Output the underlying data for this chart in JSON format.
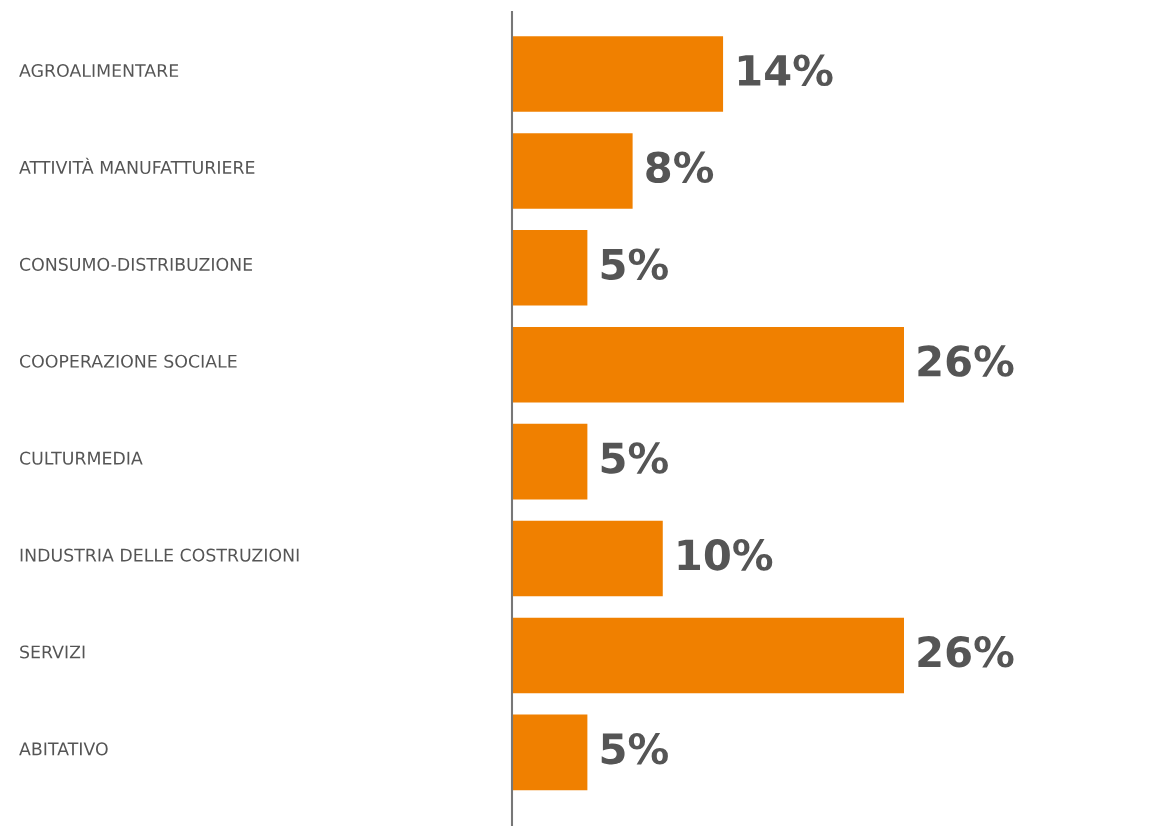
{
  "chart_data": {
    "type": "bar",
    "orientation": "horizontal",
    "categories": [
      "AGROALIMENTARE",
      "ATTIVITÀ MANUFATTURIERE",
      "CONSUMO-DISTRIBUZIONE",
      "COOPERAZIONE SOCIALE",
      "CULTURMEDIA",
      "INDUSTRIA DELLE COSTRUZIONI",
      "SERVIZI",
      "ABITATIVO"
    ],
    "values": [
      14,
      8,
      5,
      26,
      5,
      10,
      26,
      5
    ],
    "value_labels": [
      "14%",
      "8%",
      "5%",
      "26%",
      "5%",
      "10%",
      "26%",
      "5%"
    ],
    "color": "#f08000"
  }
}
